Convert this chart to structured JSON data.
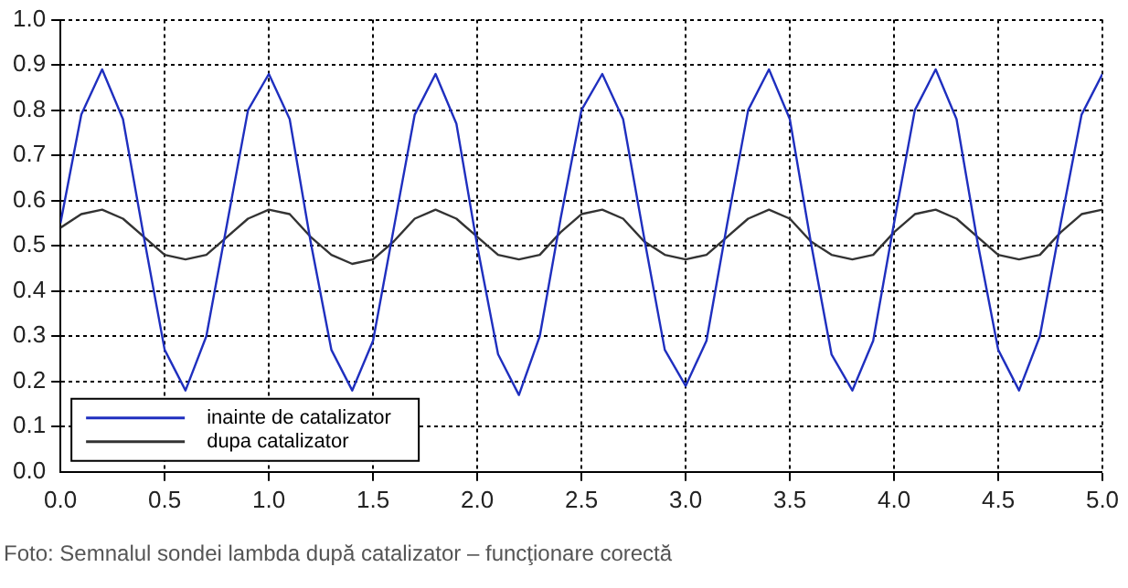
{
  "chart_data": {
    "type": "line",
    "x": [
      0,
      0.1,
      0.2,
      0.3,
      0.4,
      0.5,
      0.6,
      0.7,
      0.8,
      0.9,
      1,
      1.1,
      1.2,
      1.3,
      1.4,
      1.5,
      1.6,
      1.7,
      1.8,
      1.9,
      2,
      2.1,
      2.2,
      2.3,
      2.4,
      2.5,
      2.6,
      2.7,
      2.8,
      2.9,
      3,
      3.1,
      3.2,
      3.3,
      3.4,
      3.5,
      3.6,
      3.7,
      3.8,
      3.9,
      4,
      4.1,
      4.2,
      4.3,
      4.4,
      4.5,
      4.6,
      4.7,
      4.8,
      4.9,
      5
    ],
    "series": [
      {
        "name": "inainte de catalizator",
        "color": "#1f2fbf",
        "values": [
          0.55,
          0.79,
          0.89,
          0.78,
          0.52,
          0.27,
          0.18,
          0.3,
          0.55,
          0.8,
          0.88,
          0.78,
          0.51,
          0.27,
          0.18,
          0.29,
          0.54,
          0.79,
          0.88,
          0.77,
          0.5,
          0.26,
          0.17,
          0.3,
          0.56,
          0.8,
          0.88,
          0.78,
          0.52,
          0.27,
          0.19,
          0.29,
          0.55,
          0.8,
          0.89,
          0.78,
          0.51,
          0.26,
          0.18,
          0.29,
          0.55,
          0.8,
          0.89,
          0.78,
          0.51,
          0.27,
          0.18,
          0.3,
          0.55,
          0.79,
          0.88
        ]
      },
      {
        "name": "dupa catalizator",
        "color": "#333333",
        "values": [
          0.54,
          0.57,
          0.58,
          0.56,
          0.52,
          0.48,
          0.47,
          0.48,
          0.52,
          0.56,
          0.58,
          0.57,
          0.52,
          0.48,
          0.46,
          0.47,
          0.51,
          0.56,
          0.58,
          0.56,
          0.52,
          0.48,
          0.47,
          0.48,
          0.53,
          0.57,
          0.58,
          0.56,
          0.51,
          0.48,
          0.47,
          0.48,
          0.52,
          0.56,
          0.58,
          0.56,
          0.51,
          0.48,
          0.47,
          0.48,
          0.53,
          0.57,
          0.58,
          0.56,
          0.52,
          0.48,
          0.47,
          0.48,
          0.53,
          0.57,
          0.58
        ]
      }
    ],
    "xlim": [
      0,
      5
    ],
    "xticks": [
      {
        "value": 0,
        "label": "0.0"
      },
      0.5,
      {
        "value": 1,
        "label": "1.0"
      },
      1.5,
      {
        "value": 2,
        "label": "2.0"
      },
      2.5,
      {
        "value": 3,
        "label": "3.0"
      },
      3.5,
      {
        "value": 4,
        "label": "4.0"
      },
      4.5,
      {
        "value": 5,
        "label": "5.0"
      }
    ],
    "ylim": [
      0,
      1
    ],
    "yticks": [
      {
        "value": 0,
        "label": "0.0"
      },
      0.1,
      0.2,
      0.3,
      0.4,
      0.5,
      0.6,
      0.7,
      0.8,
      0.9,
      {
        "value": 1,
        "label": "1.0"
      }
    ],
    "grid": true,
    "legend": "bottom left",
    "marker": "none",
    "line_style": "solid",
    "annotations": [
      "Foto: Semnalul sondei lambda după catalizator – funcţionare corectă"
    ]
  }
}
